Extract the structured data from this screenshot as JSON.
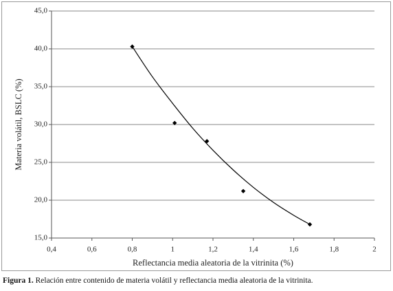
{
  "chart_data": {
    "type": "scatter",
    "x_label": "Reflectancia media aleatoria de la vitrinita (%)",
    "y_label": "Materia volátil, BSLC (%)",
    "x": [
      0.8,
      1.01,
      1.17,
      1.35,
      1.68
    ],
    "series": [
      {
        "color": "#000000",
        "values": [
          40.3,
          30.2,
          27.8,
          21.2,
          16.8
        ]
      }
    ],
    "trendline": {
      "color": "#000000",
      "x": [
        0.8,
        0.9,
        1.0,
        1.1,
        1.2,
        1.3,
        1.4,
        1.5,
        1.6,
        1.68
      ],
      "values": [
        40.3,
        36.3,
        32.8,
        29.5,
        26.6,
        24.0,
        21.7,
        19.7,
        18.0,
        16.8
      ]
    },
    "xlim": [
      0.4,
      2
    ],
    "ylim": [
      15,
      45
    ],
    "xticks": [
      {
        "value": 0.4,
        "label": "0,4"
      },
      {
        "value": 0.6,
        "label": "0,6"
      },
      {
        "value": 0.8,
        "label": "0,8"
      },
      1,
      {
        "value": 1.2,
        "label": "1,2"
      },
      {
        "value": 1.4,
        "label": "1,4"
      },
      {
        "value": 1.6,
        "label": "1,6"
      },
      {
        "value": 1.8,
        "label": "1,8"
      },
      2
    ],
    "yticks": [
      {
        "value": 15,
        "label": "15,0"
      },
      {
        "value": 20,
        "label": "20,0"
      },
      {
        "value": 25,
        "label": "25,0"
      },
      {
        "value": 30,
        "label": "30,0"
      },
      {
        "value": 35,
        "label": "35,0"
      },
      {
        "value": 40,
        "label": "40,0"
      },
      {
        "value": 45,
        "label": "45,0"
      }
    ],
    "grid": "y"
  },
  "caption": {
    "label": "Figura 1.",
    "text": "Relación entre contenido de materia volátil y reflectancia media aleatoria de la vitrinita."
  }
}
